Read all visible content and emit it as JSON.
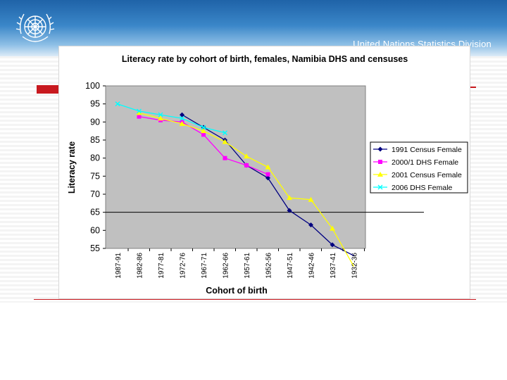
{
  "header": {
    "organization": "United Nations Statistics Division"
  },
  "colors": {
    "header_blue": "#1f63a8",
    "accent_red": "#c8191f",
    "plot_bg": "#c0c0c0"
  },
  "chart_data": {
    "type": "line",
    "title": "Literacy rate by cohort of birth, females, Namibia DHS and censuses",
    "xlabel": "Cohort of birth",
    "ylabel": "Literacy rate",
    "categories": [
      "1987-91",
      "1982-86",
      "1977-81",
      "1972-76",
      "1967-71",
      "1962-66",
      "1957-61",
      "1952-56",
      "1947-51",
      "1942-46",
      "1937-41",
      "1932-36"
    ],
    "ylim": [
      55,
      100
    ],
    "yticks": [
      55,
      60,
      65,
      70,
      75,
      80,
      85,
      90,
      95,
      100
    ],
    "reference_line": 65,
    "legend_position": "right",
    "series": [
      {
        "name": "1991 Census Female",
        "color": "#000080",
        "marker": "diamond",
        "values": [
          null,
          null,
          null,
          92,
          88.5,
          85,
          78,
          74.5,
          65.5,
          61.5,
          56,
          53
        ]
      },
      {
        "name": "2000/1 DHS Female",
        "color": "#ff00ff",
        "marker": "square",
        "values": [
          null,
          91.5,
          90.5,
          90,
          86.5,
          80,
          78,
          75.5,
          null,
          null,
          null,
          null
        ]
      },
      {
        "name": "2001 Census Female",
        "color": "#ffff00",
        "marker": "triangle",
        "values": [
          null,
          92.5,
          91,
          89.5,
          87.5,
          84.5,
          80.5,
          77.5,
          69,
          68.5,
          60.5,
          50
        ]
      },
      {
        "name": "2006 DHS Female",
        "color": "#00ffff",
        "marker": "x",
        "values": [
          95,
          93,
          92,
          91,
          88.5,
          87,
          null,
          null,
          null,
          null,
          null,
          null
        ]
      }
    ]
  }
}
